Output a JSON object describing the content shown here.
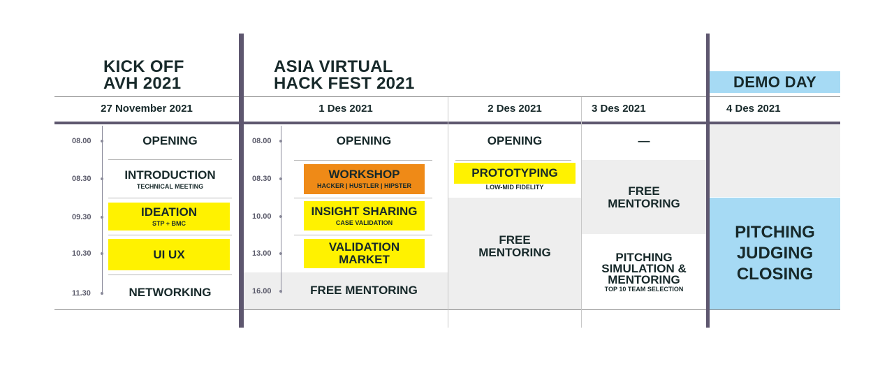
{
  "colors": {
    "yellow": "#fff200",
    "orange": "#ef8a17",
    "grey": "#eeeeee",
    "blue": "#a6daf4",
    "divider": "#5e576f"
  },
  "headers": {
    "kickoff": [
      "KICK OFF",
      "AVH 2021"
    ],
    "hackfest": [
      "ASIA VIRTUAL",
      "HACK FEST 2021"
    ],
    "demoday": "DEMO DAY"
  },
  "dates": {
    "d1": "27 November 2021",
    "d2": "1 Des 2021",
    "d3": "2 Des 2021",
    "d4": "3 Des 2021",
    "d5": "4 Des 2021"
  },
  "col1": {
    "times": [
      "08.00",
      "08.30",
      "09.30",
      "10.30",
      "11.30"
    ],
    "opening": "OPENING",
    "introduction": "INTRODUCTION",
    "introduction_sub": "TECHNICAL MEETING",
    "ideation": "IDEATION",
    "ideation_sub": "STP + BMC",
    "uiux": "UI UX",
    "networking": "NETWORKING"
  },
  "col2": {
    "times": [
      "08.00",
      "08.30",
      "10.00",
      "13.00",
      "16.00"
    ],
    "opening": "OPENING",
    "workshop": "WORKSHOP",
    "workshop_sub": "HACKER | HUSTLER | HIPSTER",
    "insight": "INSIGHT SHARING",
    "insight_sub": "CASE VALIDATION",
    "validation1": "VALIDATION",
    "validation2": "MARKET",
    "free": "FREE MENTORING"
  },
  "col3": {
    "opening": "OPENING",
    "prototyping": "PROTOTYPING",
    "prototyping_sub": "LOW-MID FIDELITY",
    "free1": "FREE",
    "free2": "MENTORING"
  },
  "col4": {
    "dash": "—",
    "free1": "FREE",
    "free2": "MENTORING",
    "pitch1": "PITCHING",
    "pitch2": "SIMULATION &",
    "pitch3": "MENTORING",
    "pitch_sub": "TOP 10 TEAM SELECTION"
  },
  "col5": {
    "l1": "PITCHING",
    "l2": "JUDGING",
    "l3": "CLOSING"
  }
}
